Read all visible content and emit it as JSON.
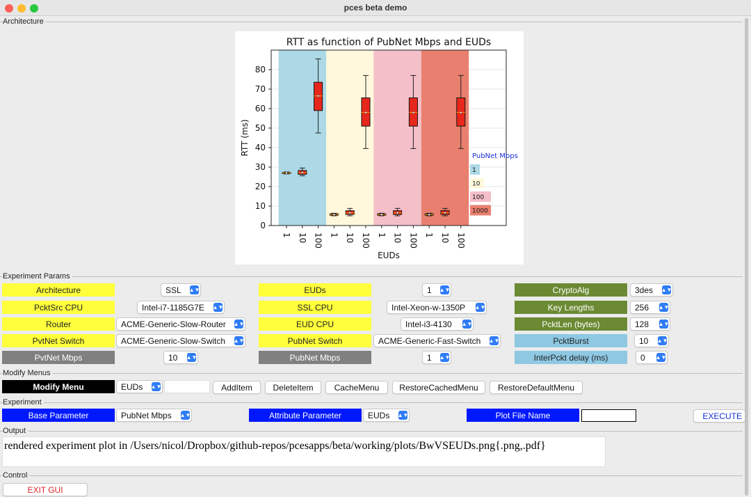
{
  "window": {
    "title": "pces beta demo"
  },
  "sections": {
    "architecture": "Architecture",
    "experiment_params": "Experiment Params",
    "modify_menus": "Modify Menus",
    "experiment": "Experiment",
    "output": "Output",
    "control": "Control"
  },
  "params": {
    "architecture": {
      "label": "Architecture",
      "value": "SSL"
    },
    "pcktsrc_cpu": {
      "label": "PcktSrc CPU",
      "value": "Intel-i7-1185G7E"
    },
    "router": {
      "label": "Router",
      "value": "ACME-Generic-Slow-Router"
    },
    "pvtnet_switch": {
      "label": "PvtNet Switch",
      "value": "ACME-Generic-Slow-Switch"
    },
    "pvtnet_mbps": {
      "label": "PvtNet Mbps",
      "value": "10"
    },
    "euds": {
      "label": "EUDs",
      "value": "1"
    },
    "ssl_cpu": {
      "label": "SSL CPU",
      "value": "Intel-Xeon-w-1350P"
    },
    "eud_cpu": {
      "label": "EUD CPU",
      "value": "Intel-i3-4130"
    },
    "pubnet_switch": {
      "label": "PubNet Switch",
      "value": "ACME-Generic-Fast-Switch"
    },
    "pubnet_mbps": {
      "label": "PubNet Mbps",
      "value": "1"
    },
    "cryptoalg": {
      "label": "CryptoAlg",
      "value": "3des"
    },
    "key_lengths": {
      "label": "Key Lengths",
      "value": "256"
    },
    "packetlen": {
      "label": "PcktLen (bytes)",
      "value": "128"
    },
    "pcktburst": {
      "label": "PcktBurst",
      "value": "10"
    },
    "interpckt_delay": {
      "label": "InterPckt delay (ms)",
      "value": "0"
    }
  },
  "modify": {
    "menu_label": "Modify Menu",
    "menu_value": "EUDs",
    "text_value": "",
    "buttons": [
      "AddItem",
      "DeleteItem",
      "CacheMenu",
      "RestoreCachedMenu",
      "RestoreDefaultMenu"
    ]
  },
  "experiment": {
    "base_label": "Base Parameter",
    "base_value": "PubNet Mbps",
    "attr_label": "Attribute Parameter",
    "attr_value": "EUDs",
    "plotfile_label": "Plot File Name",
    "plotfile_value": "",
    "execute_label": "EXECUTE"
  },
  "output": {
    "text": "rendered experiment plot in /Users/nicol/Dropbox/github-repos/pcesapps/beta/working/plots/BwVSEUDs.png{.png,.pdf}"
  },
  "control": {
    "exit_label": "EXIT GUI"
  },
  "colors": {
    "yellow": "#ffff3b",
    "gray": "#808080",
    "green": "#6b8a33",
    "lightblue": "#8ec8e3",
    "blue": "#0018ff",
    "select_arrow": "#2f7cf6"
  },
  "chart_data": {
    "type": "box",
    "title": "RTT as function of PubNet Mbps and EUDs",
    "xlabel": "EUDs",
    "ylabel": "RTT (ms)",
    "ylim": [
      0,
      90
    ],
    "yticks": [
      0,
      10,
      20,
      30,
      40,
      50,
      60,
      70,
      80
    ],
    "categories": [
      "1",
      "10",
      "100"
    ],
    "legend_title": "PubNet Mbps",
    "legend_placement": "right",
    "groups": [
      {
        "name": "1",
        "color": "#add8e6",
        "boxes": [
          {
            "label": "1",
            "min": 26.5,
            "q1": 26.8,
            "median": 27,
            "q3": 27.2,
            "max": 27.5
          },
          {
            "label": "10",
            "min": 25.5,
            "q1": 26.3,
            "median": 27.2,
            "q3": 28.2,
            "max": 29.5
          },
          {
            "label": "100",
            "min": 47.5,
            "q1": 59,
            "median": 66.5,
            "q3": 73.5,
            "max": 85.5
          }
        ]
      },
      {
        "name": "10",
        "color": "#fff8dc",
        "boxes": [
          {
            "label": "1",
            "min": 5,
            "q1": 5.3,
            "median": 5.6,
            "q3": 6,
            "max": 6.3
          },
          {
            "label": "10",
            "min": 5,
            "q1": 5.7,
            "median": 6.5,
            "q3": 7.6,
            "max": 8.8
          },
          {
            "label": "100",
            "min": 39.5,
            "q1": 51,
            "median": 58,
            "q3": 65.5,
            "max": 77
          }
        ]
      },
      {
        "name": "100",
        "color": "#f4bfc9",
        "boxes": [
          {
            "label": "1",
            "min": 5,
            "q1": 5.3,
            "median": 5.6,
            "q3": 6,
            "max": 6.3
          },
          {
            "label": "10",
            "min": 5,
            "q1": 5.7,
            "median": 6.5,
            "q3": 7.6,
            "max": 8.8
          },
          {
            "label": "100",
            "min": 39.5,
            "q1": 51,
            "median": 58,
            "q3": 65.5,
            "max": 77
          }
        ]
      },
      {
        "name": "1000",
        "color": "#e9806f",
        "boxes": [
          {
            "label": "1",
            "min": 5,
            "q1": 5.3,
            "median": 5.6,
            "q3": 6,
            "max": 6.3
          },
          {
            "label": "10",
            "min": 5,
            "q1": 5.7,
            "median": 6.5,
            "q3": 7.6,
            "max": 8.8
          },
          {
            "label": "100",
            "min": 39.5,
            "q1": 51,
            "median": 58,
            "q3": 65.5,
            "max": 77
          }
        ]
      }
    ]
  }
}
